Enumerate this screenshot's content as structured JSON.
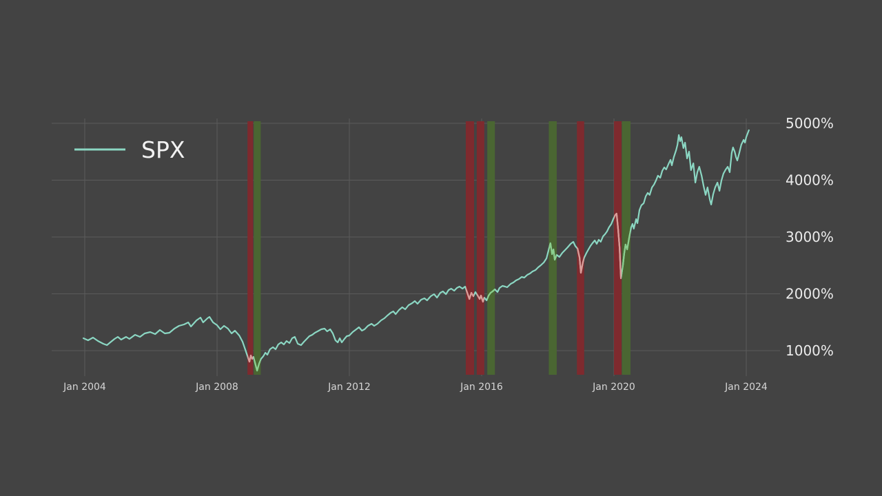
{
  "page": {
    "background": "#434343"
  },
  "legend": {
    "label": "SPX"
  },
  "chart_data": {
    "type": "line",
    "title": "",
    "xlabel": "",
    "ylabel": "",
    "legend_position": "top-left",
    "grid": true,
    "x_axis": {
      "range": [
        2003.9,
        2024.95
      ],
      "ticks": [
        {
          "t": 2004,
          "label": "Jan 2004"
        },
        {
          "t": 2008,
          "label": "Jan 2008"
        },
        {
          "t": 2012,
          "label": "Jan 2012"
        },
        {
          "t": 2016,
          "label": "Jan 2016"
        },
        {
          "t": 2020,
          "label": "Jan 2020"
        },
        {
          "t": 2024,
          "label": "Jan 2024"
        }
      ]
    },
    "y_axis": {
      "range": [
        550,
        5480
      ],
      "ticks": [
        {
          "v": 1000,
          "label": "1000%"
        },
        {
          "v": 2000,
          "label": "2000%"
        },
        {
          "v": 3000,
          "label": "3000%"
        },
        {
          "v": 4000,
          "label": "4000%"
        },
        {
          "v": 5000,
          "label": "5000%"
        }
      ]
    },
    "colors": {
      "background": "#434343",
      "grid": "#5b5b5b",
      "series_line": "#8bd7c3",
      "band_red": "#7e2a2e",
      "band_green": "#4a6632",
      "line_in_red_band": "#dc9b98",
      "line_in_green_band": "#8bce8d",
      "y_tick_text": "#ebebeb",
      "x_tick_text": "#d6d6d6",
      "legend_text": "#f2f2f2"
    },
    "bands": [
      {
        "start": 2008.92,
        "end": 2009.09,
        "kind": "red"
      },
      {
        "start": 2009.11,
        "end": 2009.32,
        "kind": "green"
      },
      {
        "start": 2015.52,
        "end": 2015.77,
        "kind": "red"
      },
      {
        "start": 2015.85,
        "end": 2016.08,
        "kind": "red"
      },
      {
        "start": 2016.17,
        "end": 2016.4,
        "kind": "green"
      },
      {
        "start": 2018.03,
        "end": 2018.27,
        "kind": "green"
      },
      {
        "start": 2018.88,
        "end": 2019.1,
        "kind": "red"
      },
      {
        "start": 2020.0,
        "end": 2020.23,
        "kind": "red"
      },
      {
        "start": 2020.24,
        "end": 2020.5,
        "kind": "green"
      }
    ],
    "series": [
      {
        "name": "SPX",
        "unit": "%",
        "points": [
          [
            2003.96,
            1218
          ],
          [
            2004.1,
            1182
          ],
          [
            2004.25,
            1230
          ],
          [
            2004.4,
            1170
          ],
          [
            2004.56,
            1121
          ],
          [
            2004.67,
            1097
          ],
          [
            2004.77,
            1145
          ],
          [
            2004.9,
            1206
          ],
          [
            2005.0,
            1242
          ],
          [
            2005.1,
            1194
          ],
          [
            2005.25,
            1242
          ],
          [
            2005.35,
            1206
          ],
          [
            2005.52,
            1279
          ],
          [
            2005.67,
            1242
          ],
          [
            2005.81,
            1303
          ],
          [
            2005.98,
            1327
          ],
          [
            2006.13,
            1291
          ],
          [
            2006.27,
            1364
          ],
          [
            2006.42,
            1303
          ],
          [
            2006.56,
            1315
          ],
          [
            2006.71,
            1388
          ],
          [
            2006.85,
            1436
          ],
          [
            2007.0,
            1461
          ],
          [
            2007.13,
            1497
          ],
          [
            2007.21,
            1424
          ],
          [
            2007.38,
            1533
          ],
          [
            2007.5,
            1582
          ],
          [
            2007.58,
            1497
          ],
          [
            2007.71,
            1570
          ],
          [
            2007.77,
            1594
          ],
          [
            2007.88,
            1497
          ],
          [
            2008.0,
            1448
          ],
          [
            2008.1,
            1376
          ],
          [
            2008.21,
            1436
          ],
          [
            2008.33,
            1388
          ],
          [
            2008.44,
            1303
          ],
          [
            2008.54,
            1352
          ],
          [
            2008.67,
            1267
          ],
          [
            2008.77,
            1158
          ],
          [
            2008.85,
            1024
          ],
          [
            2008.92,
            903
          ],
          [
            2008.98,
            806
          ],
          [
            2009.02,
            915
          ],
          [
            2009.06,
            855
          ],
          [
            2009.1,
            891
          ],
          [
            2009.15,
            782
          ],
          [
            2009.21,
            649
          ],
          [
            2009.27,
            770
          ],
          [
            2009.33,
            855
          ],
          [
            2009.4,
            903
          ],
          [
            2009.46,
            964
          ],
          [
            2009.52,
            927
          ],
          [
            2009.6,
            1024
          ],
          [
            2009.69,
            1061
          ],
          [
            2009.77,
            1024
          ],
          [
            2009.85,
            1109
          ],
          [
            2009.94,
            1145
          ],
          [
            2010.02,
            1109
          ],
          [
            2010.1,
            1170
          ],
          [
            2010.19,
            1133
          ],
          [
            2010.27,
            1218
          ],
          [
            2010.35,
            1242
          ],
          [
            2010.44,
            1121
          ],
          [
            2010.54,
            1097
          ],
          [
            2010.63,
            1158
          ],
          [
            2010.71,
            1206
          ],
          [
            2010.79,
            1255
          ],
          [
            2010.88,
            1279
          ],
          [
            2010.96,
            1315
          ],
          [
            2011.04,
            1339
          ],
          [
            2011.15,
            1376
          ],
          [
            2011.25,
            1388
          ],
          [
            2011.33,
            1339
          ],
          [
            2011.42,
            1376
          ],
          [
            2011.5,
            1303
          ],
          [
            2011.58,
            1182
          ],
          [
            2011.65,
            1145
          ],
          [
            2011.71,
            1218
          ],
          [
            2011.77,
            1145
          ],
          [
            2011.85,
            1206
          ],
          [
            2011.92,
            1255
          ],
          [
            2012.0,
            1267
          ],
          [
            2012.1,
            1327
          ],
          [
            2012.21,
            1376
          ],
          [
            2012.29,
            1412
          ],
          [
            2012.38,
            1352
          ],
          [
            2012.46,
            1376
          ],
          [
            2012.56,
            1436
          ],
          [
            2012.67,
            1473
          ],
          [
            2012.75,
            1436
          ],
          [
            2012.85,
            1473
          ],
          [
            2012.96,
            1533
          ],
          [
            2013.06,
            1570
          ],
          [
            2013.15,
            1618
          ],
          [
            2013.25,
            1667
          ],
          [
            2013.33,
            1691
          ],
          [
            2013.4,
            1642
          ],
          [
            2013.5,
            1715
          ],
          [
            2013.6,
            1764
          ],
          [
            2013.69,
            1727
          ],
          [
            2013.79,
            1800
          ],
          [
            2013.9,
            1836
          ],
          [
            2013.98,
            1873
          ],
          [
            2014.06,
            1824
          ],
          [
            2014.17,
            1897
          ],
          [
            2014.27,
            1921
          ],
          [
            2014.35,
            1885
          ],
          [
            2014.46,
            1958
          ],
          [
            2014.56,
            1994
          ],
          [
            2014.65,
            1933
          ],
          [
            2014.75,
            2018
          ],
          [
            2014.83,
            2042
          ],
          [
            2014.92,
            1994
          ],
          [
            2015.0,
            2067
          ],
          [
            2015.08,
            2091
          ],
          [
            2015.17,
            2055
          ],
          [
            2015.25,
            2103
          ],
          [
            2015.33,
            2127
          ],
          [
            2015.42,
            2091
          ],
          [
            2015.5,
            2127
          ],
          [
            2015.58,
            1994
          ],
          [
            2015.63,
            1909
          ],
          [
            2015.69,
            2018
          ],
          [
            2015.75,
            1958
          ],
          [
            2015.81,
            2030
          ],
          [
            2015.88,
            1970
          ],
          [
            2015.94,
            1909
          ],
          [
            2015.98,
            1970
          ],
          [
            2016.04,
            1861
          ],
          [
            2016.08,
            1933
          ],
          [
            2016.15,
            1885
          ],
          [
            2016.21,
            1970
          ],
          [
            2016.27,
            2018
          ],
          [
            2016.33,
            2042
          ],
          [
            2016.4,
            2079
          ],
          [
            2016.48,
            2030
          ],
          [
            2016.54,
            2103
          ],
          [
            2016.63,
            2139
          ],
          [
            2016.71,
            2127
          ],
          [
            2016.77,
            2115
          ],
          [
            2016.88,
            2176
          ],
          [
            2016.96,
            2200
          ],
          [
            2017.04,
            2236
          ],
          [
            2017.13,
            2261
          ],
          [
            2017.21,
            2297
          ],
          [
            2017.29,
            2285
          ],
          [
            2017.38,
            2333
          ],
          [
            2017.46,
            2358
          ],
          [
            2017.54,
            2394
          ],
          [
            2017.63,
            2418
          ],
          [
            2017.71,
            2467
          ],
          [
            2017.79,
            2503
          ],
          [
            2017.88,
            2552
          ],
          [
            2017.96,
            2624
          ],
          [
            2018.04,
            2806
          ],
          [
            2018.08,
            2891
          ],
          [
            2018.13,
            2697
          ],
          [
            2018.17,
            2782
          ],
          [
            2018.21,
            2600
          ],
          [
            2018.27,
            2685
          ],
          [
            2018.35,
            2648
          ],
          [
            2018.44,
            2721
          ],
          [
            2018.52,
            2770
          ],
          [
            2018.6,
            2818
          ],
          [
            2018.69,
            2879
          ],
          [
            2018.77,
            2915
          ],
          [
            2018.83,
            2842
          ],
          [
            2018.9,
            2794
          ],
          [
            2018.96,
            2636
          ],
          [
            2019.0,
            2370
          ],
          [
            2019.06,
            2552
          ],
          [
            2019.1,
            2636
          ],
          [
            2019.17,
            2721
          ],
          [
            2019.23,
            2782
          ],
          [
            2019.29,
            2842
          ],
          [
            2019.35,
            2891
          ],
          [
            2019.42,
            2939
          ],
          [
            2019.48,
            2879
          ],
          [
            2019.54,
            2951
          ],
          [
            2019.6,
            2915
          ],
          [
            2019.67,
            3012
          ],
          [
            2019.73,
            3048
          ],
          [
            2019.79,
            3097
          ],
          [
            2019.85,
            3170
          ],
          [
            2019.92,
            3230
          ],
          [
            2019.98,
            3315
          ],
          [
            2020.04,
            3388
          ],
          [
            2020.08,
            3412
          ],
          [
            2020.12,
            3170
          ],
          [
            2020.17,
            2806
          ],
          [
            2020.21,
            2273
          ],
          [
            2020.27,
            2503
          ],
          [
            2020.31,
            2709
          ],
          [
            2020.35,
            2867
          ],
          [
            2020.4,
            2782
          ],
          [
            2020.46,
            2988
          ],
          [
            2020.52,
            3170
          ],
          [
            2020.56,
            3230
          ],
          [
            2020.6,
            3145
          ],
          [
            2020.67,
            3315
          ],
          [
            2020.71,
            3242
          ],
          [
            2020.77,
            3473
          ],
          [
            2020.83,
            3558
          ],
          [
            2020.9,
            3594
          ],
          [
            2020.96,
            3715
          ],
          [
            2021.02,
            3776
          ],
          [
            2021.08,
            3739
          ],
          [
            2021.15,
            3873
          ],
          [
            2021.21,
            3921
          ],
          [
            2021.27,
            3994
          ],
          [
            2021.33,
            4079
          ],
          [
            2021.4,
            4042
          ],
          [
            2021.46,
            4164
          ],
          [
            2021.52,
            4224
          ],
          [
            2021.58,
            4188
          ],
          [
            2021.65,
            4285
          ],
          [
            2021.71,
            4358
          ],
          [
            2021.75,
            4261
          ],
          [
            2021.81,
            4406
          ],
          [
            2021.88,
            4527
          ],
          [
            2021.92,
            4624
          ],
          [
            2021.96,
            4794
          ],
          [
            2022.0,
            4685
          ],
          [
            2022.04,
            4758
          ],
          [
            2022.1,
            4564
          ],
          [
            2022.15,
            4661
          ],
          [
            2022.21,
            4382
          ],
          [
            2022.27,
            4503
          ],
          [
            2022.33,
            4176
          ],
          [
            2022.4,
            4297
          ],
          [
            2022.46,
            3958
          ],
          [
            2022.52,
            4139
          ],
          [
            2022.58,
            4236
          ],
          [
            2022.65,
            4079
          ],
          [
            2022.71,
            3897
          ],
          [
            2022.77,
            3739
          ],
          [
            2022.83,
            3873
          ],
          [
            2022.9,
            3655
          ],
          [
            2022.94,
            3570
          ],
          [
            2023.0,
            3752
          ],
          [
            2023.06,
            3873
          ],
          [
            2023.13,
            3958
          ],
          [
            2023.19,
            3812
          ],
          [
            2023.25,
            3994
          ],
          [
            2023.31,
            4115
          ],
          [
            2023.38,
            4188
          ],
          [
            2023.44,
            4236
          ],
          [
            2023.5,
            4139
          ],
          [
            2023.56,
            4479
          ],
          [
            2023.6,
            4576
          ],
          [
            2023.65,
            4503
          ],
          [
            2023.69,
            4406
          ],
          [
            2023.73,
            4345
          ],
          [
            2023.79,
            4479
          ],
          [
            2023.85,
            4624
          ],
          [
            2023.92,
            4709
          ],
          [
            2023.96,
            4661
          ],
          [
            2024.0,
            4758
          ],
          [
            2024.04,
            4818
          ],
          [
            2024.08,
            4879
          ]
        ]
      }
    ]
  }
}
